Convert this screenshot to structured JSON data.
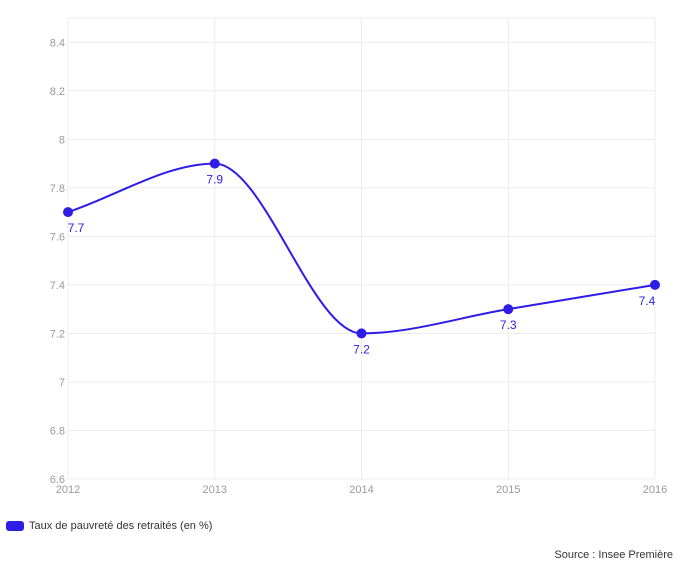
{
  "chart_data": {
    "type": "line",
    "title": "",
    "xlabel": "",
    "ylabel": "",
    "x": [
      "2012",
      "2013",
      "2014",
      "2015",
      "2016"
    ],
    "series": [
      {
        "name": "Taux de pauvreté des retraités (en %)",
        "values": [
          7.7,
          7.9,
          7.2,
          7.3,
          7.4
        ],
        "data_labels": [
          "7.7",
          "7.9",
          "7.2",
          "7.3",
          "7.4"
        ],
        "color": "#2f1de6"
      }
    ],
    "ylim": [
      6.6,
      8.5
    ],
    "yticks": [
      6.6,
      6.8,
      7,
      7.2,
      7.4,
      7.6,
      7.8,
      8,
      8.2,
      8.4
    ],
    "ytick_labels": [
      "6.6",
      "6.8",
      "7",
      "7.2",
      "7.4",
      "7.6",
      "7.8",
      "8",
      "8.2",
      "8.4"
    ],
    "grid": true,
    "legend_position": "bottom-left",
    "curve": "smooth"
  },
  "footer": {
    "source": "Source : Insee Première"
  },
  "colors": {
    "grid": "#ececec",
    "tick_text": "#9a9a9a"
  }
}
